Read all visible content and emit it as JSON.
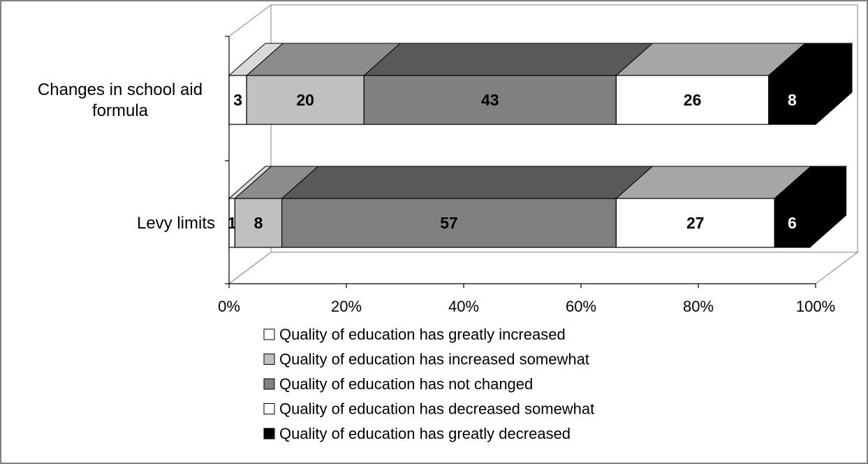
{
  "chart_data": {
    "type": "bar",
    "orientation": "horizontal",
    "stacked": "percent",
    "three_d": true,
    "categories": [
      "Changes in school aid formula",
      "Levy limits"
    ],
    "category_lines": [
      [
        "Changes in school aid",
        "formula"
      ],
      [
        "Levy limits"
      ]
    ],
    "series": [
      {
        "name": "Quality of education has greatly increased",
        "values": [
          3,
          1
        ],
        "color": "#ffffff",
        "side_color": "#d9d9d9",
        "label_color": "#000000"
      },
      {
        "name": "Quality of education has increased somewhat",
        "values": [
          20,
          8
        ],
        "color": "#c0c0c0",
        "side_color": "#8c8c8c",
        "label_color": "#000000"
      },
      {
        "name": "Quality of education has not changed",
        "values": [
          43,
          57
        ],
        "color": "#808080",
        "side_color": "#595959",
        "label_color": "#000000"
      },
      {
        "name": "Quality of education has decreased somewhat",
        "values": [
          26,
          27
        ],
        "color": "#ffffff",
        "side_color": "#a6a6a6",
        "label_color": "#000000"
      },
      {
        "name": "Quality of education has greatly decreased",
        "values": [
          8,
          6
        ],
        "color": "#000000",
        "side_color": "#000000",
        "label_color": "#ffffff"
      }
    ],
    "xlim": [
      0,
      100
    ],
    "xticks": [
      "0%",
      "20%",
      "40%",
      "60%",
      "80%",
      "100%"
    ],
    "title": "",
    "xlabel": "",
    "ylabel": "",
    "grid": false,
    "legend_position": "bottom"
  }
}
